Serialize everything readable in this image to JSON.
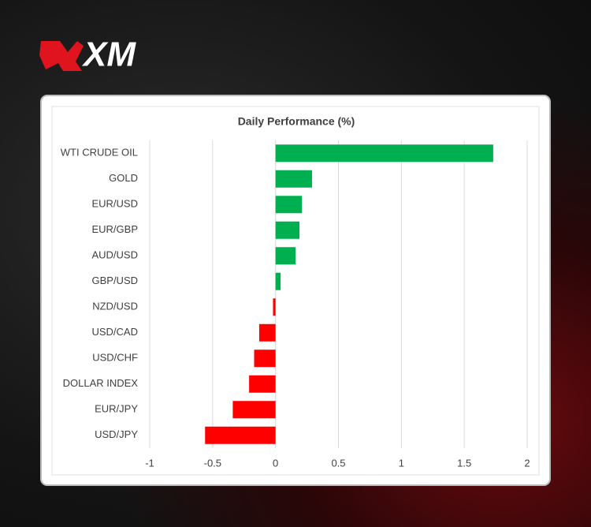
{
  "logo": "XM",
  "chart_data": {
    "type": "bar",
    "orientation": "horizontal",
    "title": "Daily Performance (%)",
    "categories": [
      "WTI CRUDE OIL",
      "GOLD",
      "EUR/USD",
      "EUR/GBP",
      "AUD/USD",
      "GBP/USD",
      "NZD/USD",
      "USD/CAD",
      "USD/CHF",
      "DOLLAR INDEX",
      "EUR/JPY",
      "USD/JPY"
    ],
    "values": [
      1.73,
      0.29,
      0.21,
      0.19,
      0.16,
      0.04,
      -0.02,
      -0.13,
      -0.17,
      -0.21,
      -0.34,
      -0.56
    ],
    "color_positive": "#00b050",
    "color_negative": "#ff0000",
    "xlim": [
      -1,
      2
    ],
    "xticks": [
      -1,
      -0.5,
      0,
      0.5,
      1,
      1.5,
      2
    ],
    "grid": true
  }
}
